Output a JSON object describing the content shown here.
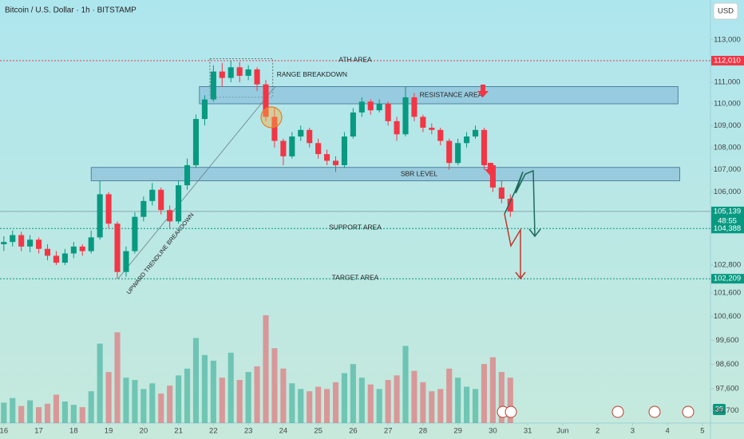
{
  "chart_data": {
    "type": "candlestick",
    "title": "Bitcoin / U.S. Dollar · 1h · BITSTAMP",
    "currency": "USD",
    "badge": "39",
    "log_scale": true,
    "grid": false,
    "up_color": "#089981",
    "down_color": "#f23645",
    "xlim": [
      15.89,
      36.23
    ],
    "xticks": [
      16,
      17,
      18,
      19,
      20,
      21,
      22,
      23,
      24,
      25,
      26,
      27,
      28,
      29,
      30,
      31,
      {
        "value": 32,
        "label": "Jun"
      },
      {
        "value": 33,
        "label": "2"
      },
      {
        "value": 34,
        "label": "3"
      },
      {
        "value": 35,
        "label": "4"
      },
      {
        "value": 36,
        "label": "5"
      }
    ],
    "ylim": [
      96200,
      114900
    ],
    "yticks": [
      {
        "value": 113000,
        "label": "113,000"
      },
      {
        "value": 111000,
        "label": "111,000"
      },
      {
        "value": 110000,
        "label": "110,000"
      },
      {
        "value": 109000,
        "label": "109,000"
      },
      {
        "value": 108000,
        "label": "108,000"
      },
      {
        "value": 107000,
        "label": "107,000"
      },
      {
        "value": 106000,
        "label": "106,000"
      },
      {
        "value": 102800,
        "label": "102,800"
      },
      {
        "value": 101600,
        "label": "101,600"
      },
      {
        "value": 100600,
        "label": "100,600"
      },
      {
        "value": 99600,
        "label": "99,600"
      },
      {
        "value": 98600,
        "label": "98,600"
      },
      {
        "value": 97600,
        "label": "97,600"
      },
      {
        "value": 96700,
        "label": "96,700"
      }
    ],
    "x": [
      16,
      16.25,
      16.5,
      16.75,
      17,
      17.25,
      17.5,
      17.75,
      18,
      18.25,
      18.5,
      18.75,
      19,
      19.25,
      19.5,
      19.75,
      20,
      20.25,
      20.5,
      20.75,
      21,
      21.25,
      21.5,
      21.75,
      22,
      22.25,
      22.5,
      22.75,
      23,
      23.25,
      23.5,
      23.75,
      24,
      24.25,
      24.5,
      24.75,
      25,
      25.25,
      25.5,
      25.75,
      26,
      26.25,
      26.5,
      26.75,
      27,
      27.25,
      27.5,
      27.75,
      28,
      28.25,
      28.5,
      28.75,
      29,
      29.25,
      29.5,
      29.75,
      30,
      30.25,
      30.5
    ],
    "ohlc": [
      [
        103700,
        104050,
        103400,
        103800
      ],
      [
        103800,
        104300,
        103600,
        104100
      ],
      [
        104100,
        104250,
        103400,
        103600
      ],
      [
        103600,
        104100,
        103350,
        103900
      ],
      [
        103900,
        104000,
        103300,
        103500
      ],
      [
        103500,
        103700,
        103000,
        103200
      ],
      [
        103200,
        103400,
        102800,
        102900
      ],
      [
        102900,
        103500,
        102800,
        103300
      ],
      [
        103300,
        103800,
        103100,
        103600
      ],
      [
        103600,
        103700,
        103200,
        103400
      ],
      [
        103400,
        104300,
        103300,
        104000
      ],
      [
        104000,
        106500,
        103900,
        105900
      ],
      [
        105900,
        106000,
        104400,
        104600
      ],
      [
        104600,
        104700,
        102209,
        102500
      ],
      [
        102500,
        103600,
        102300,
        103400
      ],
      [
        103400,
        105100,
        103300,
        104900
      ],
      [
        104900,
        105800,
        104700,
        105600
      ],
      [
        105600,
        106400,
        105400,
        106100
      ],
      [
        106100,
        106200,
        105000,
        105200
      ],
      [
        105200,
        105400,
        104400,
        104700
      ],
      [
        104700,
        106500,
        104600,
        106300
      ],
      [
        106300,
        107500,
        106100,
        107200
      ],
      [
        107200,
        109500,
        107100,
        109300
      ],
      [
        109300,
        110400,
        109000,
        110200
      ],
      [
        110200,
        111800,
        110100,
        111500
      ],
      [
        111500,
        111900,
        110800,
        111200
      ],
      [
        111200,
        112010,
        111000,
        111700
      ],
      [
        111700,
        111950,
        111000,
        111300
      ],
      [
        111300,
        111800,
        111100,
        111600
      ],
      [
        111600,
        111700,
        110600,
        110900
      ],
      [
        110900,
        111100,
        109200,
        109400
      ],
      [
        109400,
        109800,
        108000,
        108300
      ],
      [
        108300,
        108400,
        107200,
        107600
      ],
      [
        107600,
        108700,
        107500,
        108500
      ],
      [
        108500,
        109000,
        108300,
        108800
      ],
      [
        108800,
        108900,
        108000,
        108200
      ],
      [
        108200,
        108400,
        107500,
        107700
      ],
      [
        107700,
        107900,
        107200,
        107400
      ],
      [
        107400,
        107600,
        106900,
        107200
      ],
      [
        107200,
        108700,
        107100,
        108500
      ],
      [
        108500,
        109800,
        108400,
        109600
      ],
      [
        109600,
        110300,
        109400,
        110100
      ],
      [
        110100,
        110200,
        109500,
        109700
      ],
      [
        109700,
        110200,
        109600,
        110000
      ],
      [
        110000,
        110100,
        109000,
        109200
      ],
      [
        109200,
        109400,
        108300,
        108600
      ],
      [
        108600,
        110800,
        108500,
        110300
      ],
      [
        110300,
        110500,
        109200,
        109400
      ],
      [
        109400,
        109500,
        108700,
        108900
      ],
      [
        108900,
        109100,
        108600,
        108800
      ],
      [
        108800,
        108900,
        108100,
        108300
      ],
      [
        108300,
        108400,
        107000,
        107300
      ],
      [
        107300,
        108400,
        107200,
        108200
      ],
      [
        108200,
        108700,
        108000,
        108500
      ],
      [
        108500,
        109000,
        108400,
        108800
      ],
      [
        108800,
        108900,
        107000,
        107200
      ],
      [
        107200,
        107300,
        106000,
        106200
      ],
      [
        106200,
        106500,
        105500,
        105700
      ],
      [
        105700,
        105900,
        104900,
        105139
      ]
    ],
    "volume": [
      18,
      22,
      15,
      20,
      14,
      17,
      25,
      19,
      16,
      14,
      28,
      70,
      45,
      80,
      40,
      38,
      30,
      35,
      26,
      33,
      42,
      48,
      75,
      60,
      55,
      40,
      62,
      38,
      45,
      50,
      95,
      66,
      48,
      35,
      30,
      28,
      32,
      30,
      36,
      44,
      52,
      40,
      34,
      30,
      38,
      42,
      68,
      46,
      36,
      28,
      30,
      48,
      40,
      32,
      30,
      52,
      58,
      45,
      40
    ],
    "levels": [
      {
        "name": "ATH AREA",
        "value": 112010,
        "value_label": "112,010",
        "color": "#f23645",
        "style": "dotted"
      },
      {
        "value": 105139,
        "value_label": "105,139",
        "countdown": "48:55",
        "color": "#089981",
        "style": "solid"
      },
      {
        "name": "SUPPORT AREA",
        "value": 104388,
        "value_label": "104,388",
        "color": "#089981",
        "style": "dotted"
      },
      {
        "name": "TARGET AREA",
        "value": 102209,
        "value_label": "102,209",
        "color": "#089981",
        "style": "dotted"
      }
    ],
    "zones": [
      {
        "name": "RANGE BREAKDOWN",
        "low": 110300,
        "high": 112100,
        "x": [
          21.9,
          23.7
        ],
        "style": "dotted"
      },
      {
        "name": "RESISTANCE AREA",
        "low": 110000,
        "high": 110800,
        "x": [
          21.6,
          35.3
        ],
        "style": "solid"
      },
      {
        "name": "SBR LEVEL",
        "low": 106500,
        "high": 107100,
        "x": [
          18.5,
          35.35
        ],
        "style": "solid"
      }
    ],
    "trendline": {
      "name": "UPWARD TRENDLINE BREAKDOWN",
      "points": [
        [
          19.27,
          102209
        ],
        [
          23.77,
          110800
        ]
      ]
    }
  }
}
